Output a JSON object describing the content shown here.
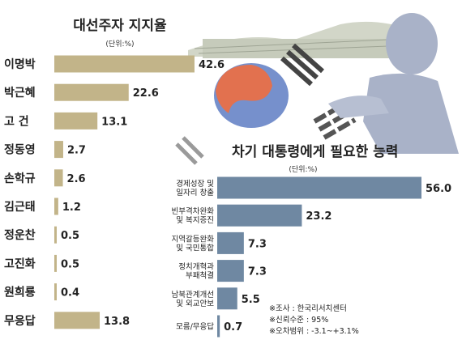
{
  "colors": {
    "bar_support": "#c2b489",
    "bar_ability": "#6f88a2",
    "text": "#222222",
    "silhouette": "#a9b2c8",
    "palace": "#b9bfae",
    "flag_red": "#e2714f",
    "flag_blue": "#7690cc"
  },
  "chart_data": [
    {
      "type": "bar",
      "orientation": "horizontal",
      "title": "대선주자 지지율",
      "unit": "(단위:%)",
      "categories": [
        "이명박",
        "박근혜",
        "고 건",
        "정동영",
        "손학규",
        "김근태",
        "정운찬",
        "고진화",
        "원희룡",
        "무응답"
      ],
      "values": [
        42.6,
        22.6,
        13.1,
        2.7,
        2.6,
        1.2,
        0.5,
        0.5,
        0.4,
        13.8
      ],
      "value_labels": [
        "42.6",
        "22.6",
        "13.1",
        "2.7",
        "2.6",
        "1.2",
        "0.5",
        "0.5",
        "0.4",
        "13.8"
      ],
      "color": "#c2b489"
    },
    {
      "type": "bar",
      "orientation": "horizontal",
      "title": "차기 대통령에게 필요한 능력",
      "unit": "(단위:%)",
      "categories": [
        [
          "경제성장 및",
          "일자리 창출"
        ],
        [
          "빈부격차완화",
          "및 복지증진"
        ],
        [
          "지역갈등완화",
          "및 국민통합"
        ],
        [
          "정치개혁과",
          "부패척결"
        ],
        [
          "남북관계개선",
          "및 외교안보"
        ],
        [
          "모름/무응답"
        ]
      ],
      "values": [
        56.0,
        23.2,
        7.3,
        7.3,
        5.5,
        0.7
      ],
      "value_labels": [
        "56.0",
        "23.2",
        "7.3",
        "7.3",
        "5.5",
        "0.7"
      ],
      "color": "#6f88a2"
    }
  ],
  "notes": [
    "※조사 : 한국리서치센터",
    "※신뢰수준 : 95%",
    "※오차범위 : -3.1~+3.1%"
  ]
}
